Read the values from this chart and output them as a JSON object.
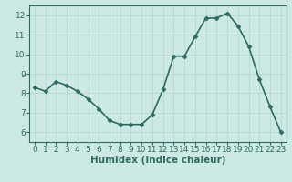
{
  "x": [
    0,
    1,
    2,
    3,
    4,
    5,
    6,
    7,
    8,
    9,
    10,
    11,
    12,
    13,
    14,
    15,
    16,
    17,
    18,
    19,
    20,
    21,
    22,
    23
  ],
  "y": [
    8.3,
    8.1,
    8.6,
    8.4,
    8.1,
    7.7,
    7.2,
    6.6,
    6.4,
    6.4,
    6.4,
    6.9,
    8.2,
    9.9,
    9.9,
    10.9,
    11.85,
    11.85,
    12.1,
    11.45,
    10.4,
    8.7,
    7.3,
    6.0
  ],
  "line_color": "#2e7d6e",
  "marker": "D",
  "marker_size": 2.5,
  "bg_color": "#cce9e5",
  "grid_color": "#b8d8d4",
  "xlabel": "Humidex (Indice chaleur)",
  "xlim": [
    -0.5,
    23.5
  ],
  "ylim": [
    5.5,
    12.5
  ],
  "yticks": [
    6,
    7,
    8,
    9,
    10,
    11,
    12
  ],
  "xticks": [
    0,
    1,
    2,
    3,
    4,
    5,
    6,
    7,
    8,
    9,
    10,
    11,
    12,
    13,
    14,
    15,
    16,
    17,
    18,
    19,
    20,
    21,
    22,
    23
  ],
  "linewidth": 1.2,
  "xlabel_fontsize": 7.5,
  "tick_fontsize": 6.5,
  "line_dark": "#2e6b5e"
}
